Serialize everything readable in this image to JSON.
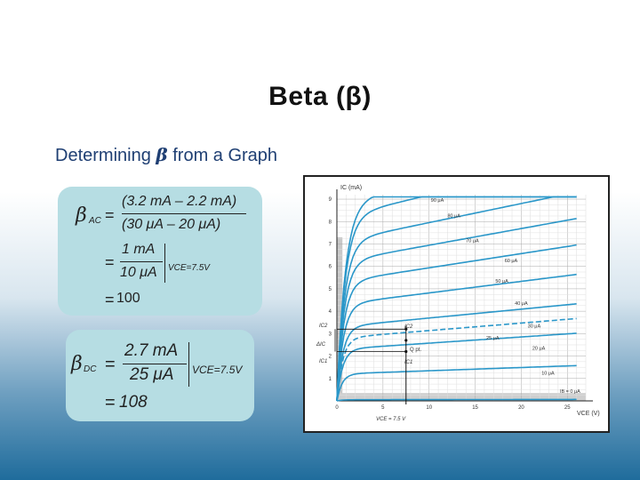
{
  "slide": {
    "title": "Beta (β)",
    "subtitle_prefix": "Determining ",
    "subtitle_beta": "β",
    "subtitle_suffix": " from a Graph"
  },
  "formula_ac": {
    "beta": "β",
    "beta_sub": "AC",
    "eq1": "=",
    "num1": "(3.2 mA – 2.2 mA)",
    "den1": "(30 μA  –  20 μA)",
    "eq2": "=",
    "num2": "1 mA",
    "den2": "10 μA",
    "cond": "VCE=7.5V",
    "eq3": "=",
    "result": "100"
  },
  "formula_dc": {
    "beta": "β",
    "beta_sub": "DC",
    "eq1": "=",
    "num": "2.7 mA",
    "den": "25 μA",
    "cond": "VCE=7.5V",
    "eq2": "=",
    "result": "108"
  },
  "graph": {
    "y_axis_label": "IC (mA)",
    "x_axis_label": "VCE (V)",
    "y_ticks": [
      "1",
      "2",
      "3",
      "4",
      "5",
      "6",
      "7",
      "8",
      "9"
    ],
    "x_ticks": [
      "0",
      "5",
      "10",
      "15",
      "20",
      "25"
    ],
    "curves": [
      {
        "label": "90 μA",
        "level": 8.8
      },
      {
        "label": "80 μA",
        "level": 8.2
      },
      {
        "label": "70 μA",
        "level": 7.1
      },
      {
        "label": "60 μA",
        "level": 6.2
      },
      {
        "label": "50 μA",
        "level": 5.3
      },
      {
        "label": "40 μA",
        "level": 4.3
      },
      {
        "label": "30 μA",
        "level": 3.3
      },
      {
        "label": "25 μA",
        "level": 2.8
      },
      {
        "label": "20 μA",
        "level": 2.3
      },
      {
        "label": "10 μA",
        "level": 1.2
      },
      {
        "label": "IB = 0 μA",
        "level": 0.05
      }
    ],
    "annotations": {
      "ic2": "IC2",
      "ic1": "IC1",
      "delta_ic": "ΔIC",
      "point_c2": "IC2",
      "point_c1": "IC1",
      "delta_ib": "Q pt.",
      "vce_q": "VCE = 7.5 V"
    }
  }
}
